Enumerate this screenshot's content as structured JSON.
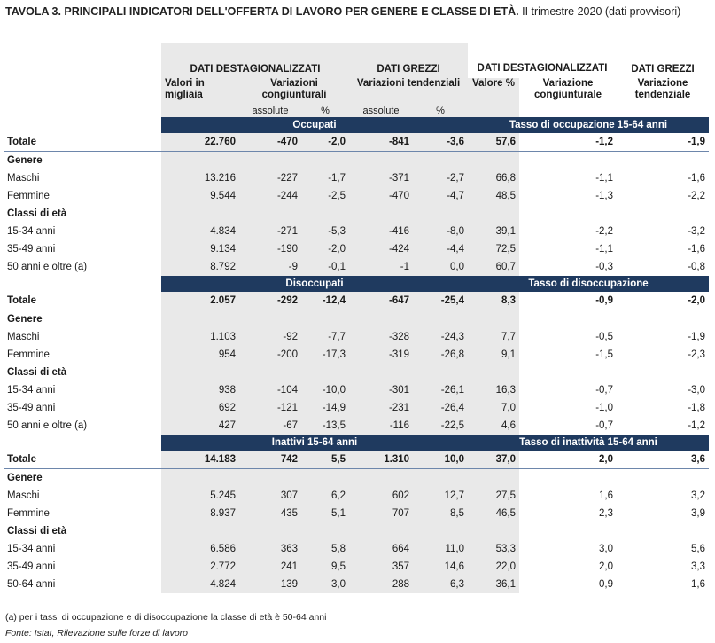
{
  "title_bold": "TAVOLA 3. PRINCIPALI INDICATORI DELL'OFFERTA DI LAVORO PER GENERE E CLASSE DI ETÀ.",
  "title_rest": " II trimestre 2020 (dati provvisori)",
  "headers": {
    "dest": "DATI DESTAGIONALIZZATI",
    "grezzi": "DATI GREZZI",
    "dest2": "DATI DESTAGIONALIZZATI",
    "grezzi2": "DATI GREZZI",
    "valori": "Valori in migliaia",
    "var_cong": "Variazioni congiunturali",
    "var_tend": "Variazioni tendenziali",
    "valore_pct": "Valore %",
    "variazione_cong": "Variazione congiunturale",
    "variazione_tend": "Variazione tendenziale",
    "assolute": "assolute",
    "pct": "%",
    "assolute2": "assolute",
    "pct2": "%"
  },
  "sections": [
    {
      "left_title": "Occupati",
      "right_title": "Tasso di occupazione 15-64 anni",
      "rows": [
        {
          "label": "Totale",
          "type": "total",
          "v": [
            "22.760",
            "-470",
            "-2,0",
            "-841",
            "-3,6",
            "57,6",
            "-1,2",
            "-1,9"
          ]
        },
        {
          "label": "Genere",
          "type": "group",
          "v": [
            "",
            "",
            "",
            "",
            "",
            "",
            "",
            ""
          ]
        },
        {
          "label": "Maschi",
          "type": "row",
          "v": [
            "13.216",
            "-227",
            "-1,7",
            "-371",
            "-2,7",
            "66,8",
            "-1,1",
            "-1,6"
          ]
        },
        {
          "label": "Femmine",
          "type": "row",
          "v": [
            "9.544",
            "-244",
            "-2,5",
            "-470",
            "-4,7",
            "48,5",
            "-1,3",
            "-2,2"
          ]
        },
        {
          "label": "Classi di età",
          "type": "group",
          "v": [
            "",
            "",
            "",
            "",
            "",
            "",
            "",
            ""
          ]
        },
        {
          "label": "15-34 anni",
          "type": "row",
          "v": [
            "4.834",
            "-271",
            "-5,3",
            "-416",
            "-8,0",
            "39,1",
            "-2,2",
            "-3,2"
          ]
        },
        {
          "label": "35-49 anni",
          "type": "row",
          "v": [
            "9.134",
            "-190",
            "-2,0",
            "-424",
            "-4,4",
            "72,5",
            "-1,1",
            "-1,6"
          ]
        },
        {
          "label": "50 anni e oltre (a)",
          "type": "row",
          "v": [
            "8.792",
            "-9",
            "-0,1",
            "-1",
            "0,0",
            "60,7",
            "-0,3",
            "-0,8"
          ]
        }
      ]
    },
    {
      "left_title": "Disoccupati",
      "right_title": "Tasso di disoccupazione",
      "rows": [
        {
          "label": "Totale",
          "type": "total",
          "v": [
            "2.057",
            "-292",
            "-12,4",
            "-647",
            "-25,4",
            "8,3",
            "-0,9",
            "-2,0"
          ]
        },
        {
          "label": "Genere",
          "type": "group",
          "v": [
            "",
            "",
            "",
            "",
            "",
            "",
            "",
            ""
          ]
        },
        {
          "label": "Maschi",
          "type": "row",
          "v": [
            "1.103",
            "-92",
            "-7,7",
            "-328",
            "-24,3",
            "7,7",
            "-0,5",
            "-1,9"
          ]
        },
        {
          "label": "Femmine",
          "type": "row",
          "v": [
            "954",
            "-200",
            "-17,3",
            "-319",
            "-26,8",
            "9,1",
            "-1,5",
            "-2,3"
          ]
        },
        {
          "label": "Classi di età",
          "type": "group",
          "v": [
            "",
            "",
            "",
            "",
            "",
            "",
            "",
            ""
          ]
        },
        {
          "label": "15-34 anni",
          "type": "row",
          "v": [
            "938",
            "-104",
            "-10,0",
            "-301",
            "-26,1",
            "16,3",
            "-0,7",
            "-3,0"
          ]
        },
        {
          "label": "35-49 anni",
          "type": "row",
          "v": [
            "692",
            "-121",
            "-14,9",
            "-231",
            "-26,4",
            "7,0",
            "-1,0",
            "-1,8"
          ]
        },
        {
          "label": "50 anni e oltre (a)",
          "type": "row",
          "v": [
            "427",
            "-67",
            "-13,5",
            "-116",
            "-22,5",
            "4,6",
            "-0,7",
            "-1,2"
          ]
        }
      ]
    },
    {
      "left_title": "Inattivi 15-64 anni",
      "right_title": "Tasso di inattività 15-64 anni",
      "rows": [
        {
          "label": "Totale",
          "type": "total",
          "v": [
            "14.183",
            "742",
            "5,5",
            "1.310",
            "10,0",
            "37,0",
            "2,0",
            "3,6"
          ]
        },
        {
          "label": "Genere",
          "type": "group",
          "v": [
            "",
            "",
            "",
            "",
            "",
            "",
            "",
            ""
          ]
        },
        {
          "label": "Maschi",
          "type": "row",
          "v": [
            "5.245",
            "307",
            "6,2",
            "602",
            "12,7",
            "27,5",
            "1,6",
            "3,2"
          ]
        },
        {
          "label": "Femmine",
          "type": "row",
          "v": [
            "8.937",
            "435",
            "5,1",
            "707",
            "8,5",
            "46,5",
            "2,3",
            "3,9"
          ]
        },
        {
          "label": "Classi di età",
          "type": "group",
          "v": [
            "",
            "",
            "",
            "",
            "",
            "",
            "",
            ""
          ]
        },
        {
          "label": "15-34 anni",
          "type": "row",
          "v": [
            "6.586",
            "363",
            "5,8",
            "664",
            "11,0",
            "53,3",
            "3,0",
            "5,6"
          ]
        },
        {
          "label": "35-49 anni",
          "type": "row",
          "v": [
            "2.772",
            "241",
            "9,5",
            "357",
            "14,6",
            "22,0",
            "2,0",
            "3,3"
          ]
        },
        {
          "label": "50-64 anni",
          "type": "row",
          "v": [
            "4.824",
            "139",
            "3,0",
            "288",
            "6,3",
            "36,1",
            "0,9",
            "1,6"
          ]
        }
      ]
    }
  ],
  "footnote": "(a) per i tassi di occupazione e di disoccupazione la classe di età è 50-64 anni",
  "source": "Fonte: Istat, Rilevazione sulle forze di lavoro",
  "colors": {
    "section_bar": "#1f3a5f",
    "shade": "#e9e9e9"
  }
}
